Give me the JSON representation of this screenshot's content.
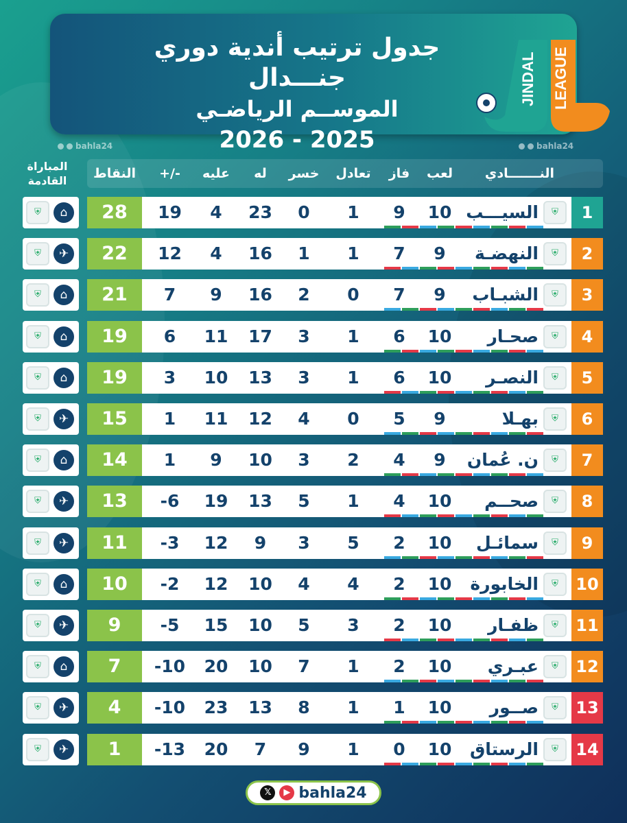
{
  "header": {
    "title": "جدول ترتيب أندية دوري جنـــدال",
    "subtitle": "الموســم الرياضـي",
    "season": "2026 - 2025",
    "logo_text_1": "JINDAL",
    "logo_text_2": "LEAGUE"
  },
  "watermark": "bahla24",
  "columns": {
    "club": "النـــــــادي",
    "played": "لعب",
    "won": "فاز",
    "drawn": "تعادل",
    "lost": "خسر",
    "goals_for": "له",
    "goals_against": "عليه",
    "diff": "+/-",
    "points": "النقاط",
    "next_match": "المباراة القادمة"
  },
  "colors": {
    "accent_green": "#8bc34a",
    "rank_teal": "#1fa493",
    "rank_orange": "#f28c1e",
    "rank_red": "#e53947",
    "text_navy": "#14426b"
  },
  "rows": [
    {
      "rank": "1",
      "team": "السيـــب",
      "played": "10",
      "won": "9",
      "drawn": "1",
      "lost": "0",
      "gf": "23",
      "ga": "4",
      "diff": "19",
      "points": "28",
      "venue": "home-icon",
      "zone": "teal"
    },
    {
      "rank": "2",
      "team": "النهضـة",
      "played": "9",
      "won": "7",
      "drawn": "1",
      "lost": "1",
      "gf": "16",
      "ga": "4",
      "diff": "12",
      "points": "22",
      "venue": "plane-icon",
      "zone": "orange"
    },
    {
      "rank": "3",
      "team": "الشبـاب",
      "played": "9",
      "won": "7",
      "drawn": "0",
      "lost": "2",
      "gf": "16",
      "ga": "9",
      "diff": "7",
      "points": "21",
      "venue": "home-icon",
      "zone": "orange"
    },
    {
      "rank": "4",
      "team": "صحـار",
      "played": "10",
      "won": "6",
      "drawn": "1",
      "lost": "3",
      "gf": "17",
      "ga": "11",
      "diff": "6",
      "points": "19",
      "venue": "home-icon",
      "zone": "orange"
    },
    {
      "rank": "5",
      "team": "النصـر",
      "played": "10",
      "won": "6",
      "drawn": "1",
      "lost": "3",
      "gf": "13",
      "ga": "10",
      "diff": "3",
      "points": "19",
      "venue": "home-icon",
      "zone": "orange"
    },
    {
      "rank": "6",
      "team": "بهـلا",
      "played": "9",
      "won": "5",
      "drawn": "0",
      "lost": "4",
      "gf": "12",
      "ga": "11",
      "diff": "1",
      "points": "15",
      "venue": "plane-icon",
      "zone": "orange"
    },
    {
      "rank": "7",
      "team": "ن. عُمان",
      "played": "9",
      "won": "4",
      "drawn": "2",
      "lost": "3",
      "gf": "10",
      "ga": "9",
      "diff": "1",
      "points": "14",
      "venue": "home-icon",
      "zone": "orange"
    },
    {
      "rank": "8",
      "team": "صحــم",
      "played": "10",
      "won": "4",
      "drawn": "1",
      "lost": "5",
      "gf": "13",
      "ga": "19",
      "diff": "-6",
      "points": "13",
      "venue": "plane-icon",
      "zone": "orange"
    },
    {
      "rank": "9",
      "team": "سمائـل",
      "played": "10",
      "won": "2",
      "drawn": "5",
      "lost": "3",
      "gf": "9",
      "ga": "12",
      "diff": "-3",
      "points": "11",
      "venue": "plane-icon",
      "zone": "orange"
    },
    {
      "rank": "10",
      "team": "الخابورة",
      "played": "10",
      "won": "2",
      "drawn": "4",
      "lost": "4",
      "gf": "10",
      "ga": "12",
      "diff": "-2",
      "points": "10",
      "venue": "home-icon",
      "zone": "orange"
    },
    {
      "rank": "11",
      "team": "ظفـار",
      "played": "10",
      "won": "2",
      "drawn": "3",
      "lost": "5",
      "gf": "10",
      "ga": "15",
      "diff": "-5",
      "points": "9",
      "venue": "plane-icon",
      "zone": "orange"
    },
    {
      "rank": "12",
      "team": "عبـري",
      "played": "10",
      "won": "2",
      "drawn": "1",
      "lost": "7",
      "gf": "10",
      "ga": "20",
      "diff": "-10",
      "points": "7",
      "venue": "home-icon",
      "zone": "orange"
    },
    {
      "rank": "13",
      "team": "صــور",
      "played": "10",
      "won": "1",
      "drawn": "1",
      "lost": "8",
      "gf": "13",
      "ga": "23",
      "diff": "-10",
      "points": "4",
      "venue": "plane-icon",
      "zone": "red"
    },
    {
      "rank": "14",
      "team": "الرستاق",
      "played": "10",
      "won": "0",
      "drawn": "1",
      "lost": "9",
      "gf": "7",
      "ga": "20",
      "diff": "-13",
      "points": "1",
      "venue": "plane-icon",
      "zone": "red"
    }
  ],
  "footer": {
    "handle": "bahla24"
  }
}
